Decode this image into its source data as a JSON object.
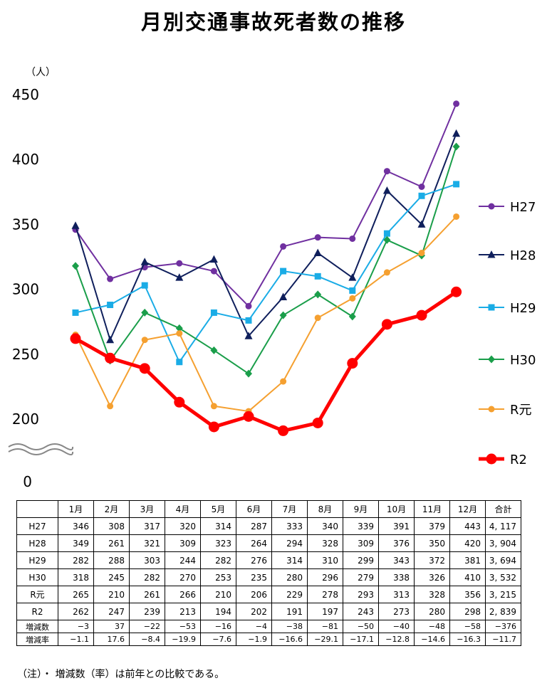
{
  "title": "月別交通事故死者数の推移",
  "note": "（注）・ 増減数（率）は前年との比較である。",
  "chart_data": {
    "type": "line",
    "title": "月別交通事故死者数の推移",
    "ylabel": "（人）",
    "ylim": [
      0,
      450
    ],
    "axis_break": [
      0,
      200
    ],
    "yticks": [
      0,
      200,
      250,
      300,
      350,
      400,
      450
    ],
    "categories": [
      "1月",
      "2月",
      "3月",
      "4月",
      "5月",
      "6月",
      "7月",
      "8月",
      "9月",
      "10月",
      "11月",
      "12月"
    ],
    "series": [
      {
        "name": "H27",
        "color": "#7030a0",
        "marker": "circle",
        "values": [
          346,
          308,
          317,
          320,
          314,
          287,
          333,
          340,
          339,
          391,
          379,
          443
        ],
        "total": "4, 117"
      },
      {
        "name": "H28",
        "color": "#0f1f5c",
        "marker": "triangle",
        "values": [
          349,
          261,
          321,
          309,
          323,
          264,
          294,
          328,
          309,
          376,
          350,
          420
        ],
        "total": "3, 904"
      },
      {
        "name": "H29",
        "color": "#1aace6",
        "marker": "square",
        "values": [
          282,
          288,
          303,
          244,
          282,
          276,
          314,
          310,
          299,
          343,
          372,
          381
        ],
        "total": "3, 694"
      },
      {
        "name": "H30",
        "color": "#1a9e4a",
        "marker": "diamond",
        "values": [
          318,
          245,
          282,
          270,
          253,
          235,
          280,
          296,
          279,
          338,
          326,
          410
        ],
        "total": "3, 532"
      },
      {
        "name": "R元",
        "color": "#f5a030",
        "marker": "circle",
        "values": [
          265,
          210,
          261,
          266,
          210,
          206,
          229,
          278,
          293,
          313,
          328,
          356
        ],
        "total": "3, 215"
      },
      {
        "name": "R2",
        "color": "#ff0000",
        "marker": "circle-large",
        "values": [
          262,
          247,
          239,
          213,
          194,
          202,
          191,
          197,
          243,
          273,
          280,
          298
        ],
        "total": "2, 839"
      }
    ]
  },
  "table": {
    "header_total": "合計",
    "diff_label": "増減数",
    "diff_values": [
      "−3",
      "37",
      "−22",
      "−53",
      "−16",
      "−4",
      "−38",
      "−81",
      "−50",
      "−40",
      "−48",
      "−58",
      "−376"
    ],
    "rate_label": "増減率",
    "rate_values": [
      "−1.1",
      "17.6",
      "−8.4",
      "−19.9",
      "−7.6",
      "−1.9",
      "−16.6",
      "−29.1",
      "−17.1",
      "−12.8",
      "−14.6",
      "−16.3",
      "−11.7"
    ]
  }
}
